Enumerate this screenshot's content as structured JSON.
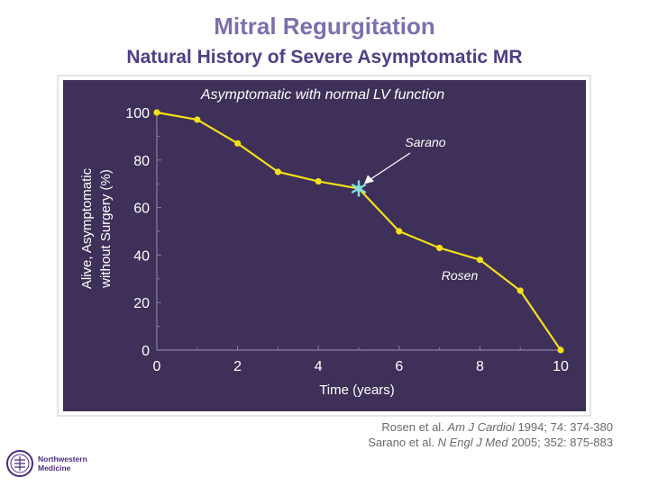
{
  "slide": {
    "title": "Mitral Regurgitation",
    "subtitle": "Natural History of Severe Asymptomatic MR"
  },
  "chart_data": {
    "type": "line",
    "title": "Asymptomatic with normal LV function",
    "xlabel": "Time (years)",
    "ylabel_line1": "Alive, Asymptomatic",
    "ylabel_line2": "without Surgery (%)",
    "xlim": [
      0,
      10
    ],
    "ylim": [
      0,
      100
    ],
    "x_ticks": [
      "0",
      "2",
      "4",
      "6",
      "8",
      "10"
    ],
    "y_ticks": [
      "0",
      "20",
      "40",
      "60",
      "80",
      "100"
    ],
    "series": [
      {
        "name": "Rosen",
        "color": "#f2e01a",
        "x": [
          0,
          1,
          2,
          3,
          4,
          5,
          6,
          7,
          8,
          9,
          10
        ],
        "y": [
          100,
          97,
          87,
          75,
          71,
          68,
          50,
          43,
          38,
          25,
          0
        ]
      }
    ],
    "annotations": [
      {
        "text": "Sarano",
        "marker": "asterisk",
        "marker_color": "#7fe0e8",
        "x": 5,
        "y": 68
      },
      {
        "text": "Rosen"
      }
    ],
    "grid": false,
    "background_color": "#3e3058",
    "axis_color": "#8a7f9e"
  },
  "references": [
    {
      "authors": "Rosen et al. ",
      "journal": "Am J Cardiol",
      "details": " 1994; 74: 374-380"
    },
    {
      "authors": "Sarano et al. ",
      "journal": "N Engl J Med",
      "details": " 2005; 352: 875-883"
    }
  ],
  "logo": {
    "line1": "Northwestern",
    "line2": "Medicine",
    "icon": "university-seal-icon"
  }
}
